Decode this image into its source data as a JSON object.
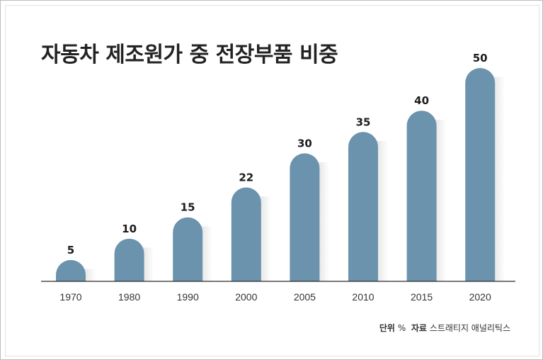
{
  "chart_data": {
    "type": "bar",
    "title": "자동차 제조원가 중 전장부품 비중",
    "categories": [
      "1970",
      "1980",
      "1990",
      "2000",
      "2005",
      "2010",
      "2015",
      "2020"
    ],
    "values": [
      5,
      10,
      15,
      22,
      30,
      35,
      40,
      50
    ],
    "ylim": [
      0,
      50
    ],
    "grid": false,
    "bar_color": "#6b93ad",
    "unit_label": "단위",
    "unit": "%",
    "source_label": "자료",
    "source": "스트래티지 애널리틱스"
  }
}
